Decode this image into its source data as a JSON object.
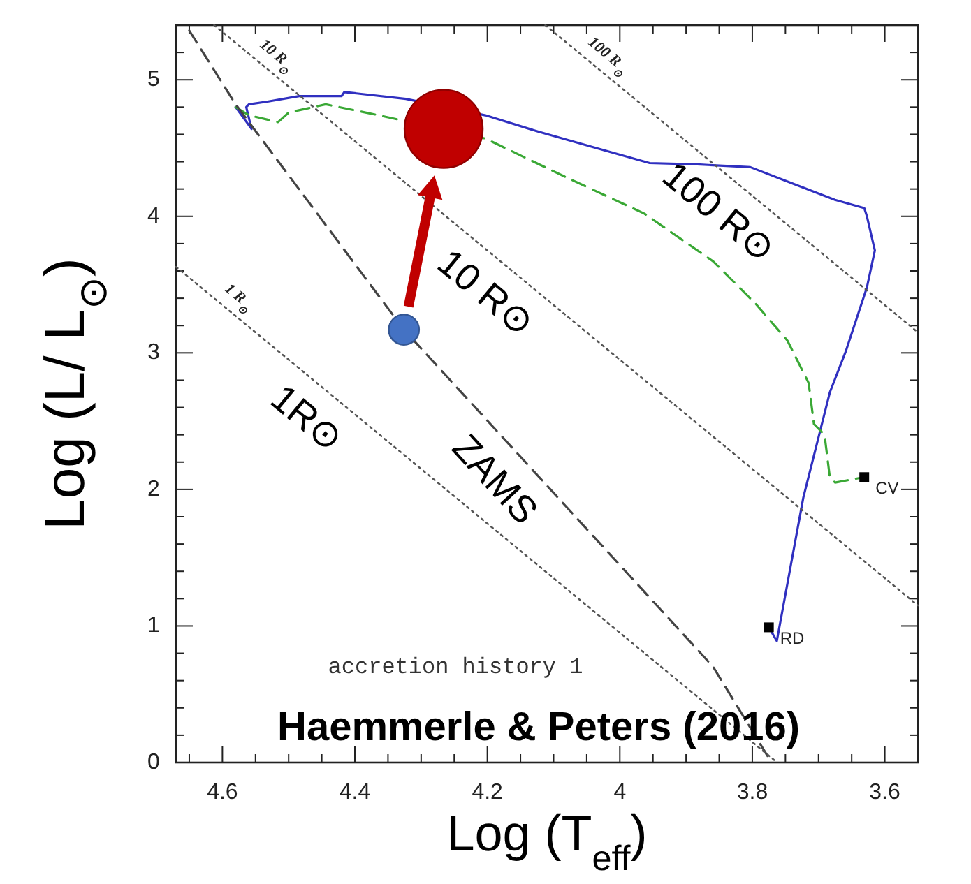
{
  "chart_data": {
    "type": "line",
    "title": "accretion history 1",
    "xlabel": "Log (T$_{eff}$)",
    "ylabel": "Log (L/ L$_{⊙}$)",
    "xlim": [
      4.67,
      3.55
    ],
    "ylim": [
      0,
      5.4
    ],
    "xticks": [
      {
        "value": 4.65,
        "label": null
      },
      4.6,
      {
        "value": 4.55,
        "label": null
      },
      {
        "value": 4.5,
        "label": null
      },
      {
        "value": 4.45,
        "label": null
      },
      4.4,
      {
        "value": 4.35,
        "label": null
      },
      {
        "value": 4.3,
        "label": null
      },
      {
        "value": 4.25,
        "label": null
      },
      4.2,
      {
        "value": 4.15,
        "label": null
      },
      {
        "value": 4.1,
        "label": null
      },
      {
        "value": 4.05,
        "label": null
      },
      4,
      {
        "value": 3.95,
        "label": null
      },
      {
        "value": 3.9,
        "label": null
      },
      {
        "value": 3.85,
        "label": null
      },
      3.8,
      {
        "value": 3.75,
        "label": null
      },
      {
        "value": 3.7,
        "label": null
      },
      {
        "value": 3.65,
        "label": null
      },
      3.6
    ],
    "yticks": [
      0,
      {
        "value": 0.2,
        "label": null
      },
      {
        "value": 0.4,
        "label": null
      },
      {
        "value": 0.6,
        "label": null
      },
      {
        "value": 0.8,
        "label": null
      },
      1,
      {
        "value": 1.2,
        "label": null
      },
      {
        "value": 1.4,
        "label": null
      },
      {
        "value": 1.6,
        "label": null
      },
      {
        "value": 1.8,
        "label": null
      },
      2,
      {
        "value": 2.2,
        "label": null
      },
      {
        "value": 2.4,
        "label": null
      },
      {
        "value": 2.6,
        "label": null
      },
      {
        "value": 2.8,
        "label": null
      },
      3,
      {
        "value": 3.2,
        "label": null
      },
      {
        "value": 3.4,
        "label": null
      },
      {
        "value": 3.6,
        "label": null
      },
      {
        "value": 3.8,
        "label": null
      },
      4,
      {
        "value": 4.2,
        "label": null
      },
      {
        "value": 4.4,
        "label": null
      },
      {
        "value": 4.6,
        "label": null
      },
      {
        "value": 4.8,
        "label": null
      },
      5,
      {
        "value": 5.2,
        "label": null
      }
    ],
    "series": [
      {
        "color": "#3030c0",
        "line_style": "solid",
        "x": [
          4.58,
          4.556,
          4.564,
          4.56,
          4.532,
          4.484,
          4.42,
          4.416,
          4.323,
          4.203,
          4.123,
          4.043,
          3.955,
          3.883,
          3.803,
          3.755,
          3.675,
          3.631,
          3.627,
          3.615,
          3.627,
          3.659,
          3.683,
          3.723,
          3.763,
          3.775
        ],
        "values": [
          4.8,
          4.64,
          4.8,
          4.82,
          4.84,
          4.88,
          4.88,
          4.91,
          4.86,
          4.74,
          4.62,
          4.51,
          4.39,
          4.38,
          4.36,
          4.27,
          4.12,
          4.06,
          4.0,
          3.75,
          3.48,
          3.01,
          2.71,
          1.94,
          0.89,
          0.99
        ]
      },
      {
        "color": "#3aa835",
        "line_style": "dashed",
        "x": [
          4.58,
          4.56,
          4.516,
          4.5,
          4.444,
          4.364,
          4.203,
          4.083,
          3.963,
          3.859,
          3.795,
          3.747,
          3.715,
          3.707,
          3.691,
          3.683,
          3.675,
          3.631
        ],
        "values": [
          4.8,
          4.74,
          4.69,
          4.76,
          4.82,
          4.74,
          4.57,
          4.29,
          4.02,
          3.67,
          3.36,
          3.09,
          2.78,
          2.48,
          2.4,
          2.09,
          2.05,
          2.09
        ]
      },
      {
        "color": "#444444",
        "line_style": "dashed",
        "x": [
          4.65,
          4.58,
          4.326,
          3.859,
          3.771
        ],
        "values": [
          5.36,
          4.82,
          3.17,
          0.7,
          0.0
        ]
      },
      {
        "name": "1 R$_{⊙}$",
        "color": "#555555",
        "line_style": "dotted",
        "x": [
          4.67,
          3.7625
        ],
        "values": [
          3.63,
          0.0
        ]
      },
      {
        "name": "10 R$_{⊙}$",
        "color": "#555555",
        "line_style": "dotted",
        "x": [
          4.6125,
          3.55
        ],
        "values": [
          5.4,
          1.15
        ]
      },
      {
        "name": "100 R$_{⊙}$",
        "color": "#555555",
        "line_style": "dotted",
        "x": [
          4.1125,
          3.55
        ],
        "values": [
          5.4,
          3.15
        ]
      },
      {
        "type": "scatter",
        "marker": "square",
        "color": "#000000",
        "x": [
          3.631,
          3.775
        ],
        "values": [
          2.09,
          0.99
        ],
        "value_labels": [
          "CV",
          "RD"
        ]
      },
      {
        "type": "bubble",
        "x": [
          4.326,
          4.266
        ],
        "values": [
          3.17,
          4.64
        ],
        "sizes": [
          0.15,
          1
        ],
        "colors": [
          "#4472c4",
          "#c00000"
        ]
      }
    ],
    "annotations": [
      {
        "text": "100 R⊙",
        "x": 3.818,
        "y": 4.22
      },
      {
        "text": "10 R⊙",
        "x": 4.17,
        "y": 3.63
      },
      {
        "text": "1R⊙",
        "x": 4.44,
        "y": 2.71
      },
      {
        "text": "ZAMS",
        "x": 4.151,
        "y": 2.24
      },
      "Haemmerle & Peters (2016)"
    ]
  }
}
